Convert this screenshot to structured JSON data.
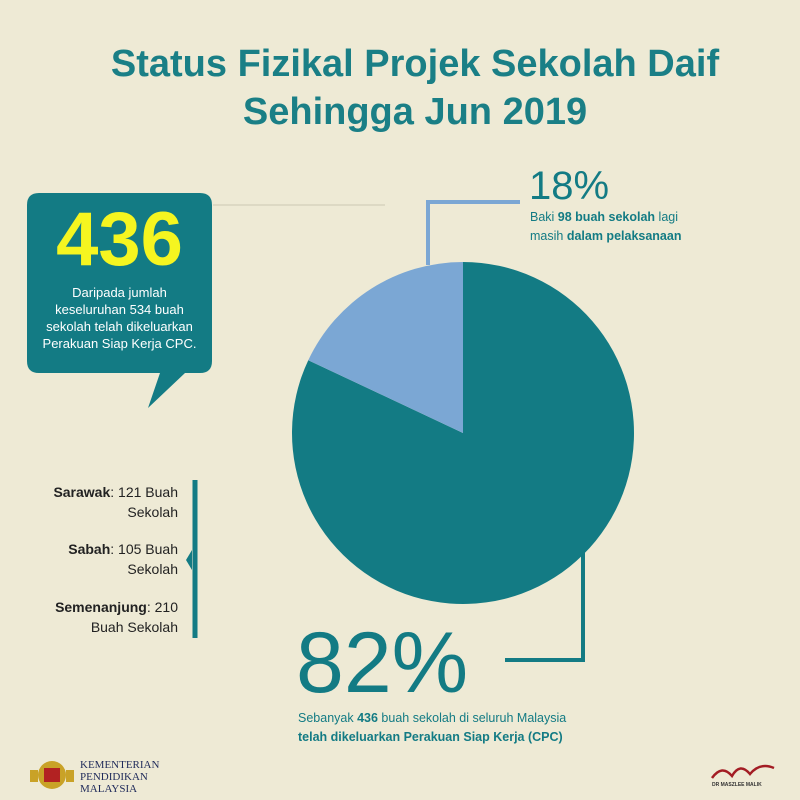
{
  "chart_data": {
    "type": "pie",
    "title": "Status Fizikal Projek Sekolah Daif Sehingga Jun 2019",
    "values": [
      82,
      18
    ],
    "value_labels": [
      "82%",
      "18%"
    ],
    "colors": [
      "#137b84",
      "#7ba7d4"
    ],
    "slice_notes": [
      [
        "Sebanyak ",
        "436",
        " buah sekolah di seluruh Malaysia ",
        "telah dikeluarkan Perakuan Siap Kerja (CPC)"
      ],
      [
        "Baki ",
        "98 buah sekolah",
        " lagi masih ",
        "dalam pelaksanaan"
      ]
    ]
  },
  "callout": {
    "number": "436",
    "text": "Daripada jumlah keseluruhan 534 buah sekolah telah dikeluarkan Perakuan Siap Kerja CPC."
  },
  "breakdown": [
    {
      "region": "Sarawak",
      "text": ": 121 Buah Sekolah"
    },
    {
      "region": "Sabah",
      "text": ": 105 Buah Sekolah"
    },
    {
      "region": "Semenanjung",
      "text": ": 210 Buah Sekolah"
    }
  ],
  "footer": {
    "ministry": [
      "KEMENTERIAN",
      "PENDIDIKAN",
      "MALAYSIA"
    ],
    "signature": "DR MASZLEE MALIK"
  }
}
